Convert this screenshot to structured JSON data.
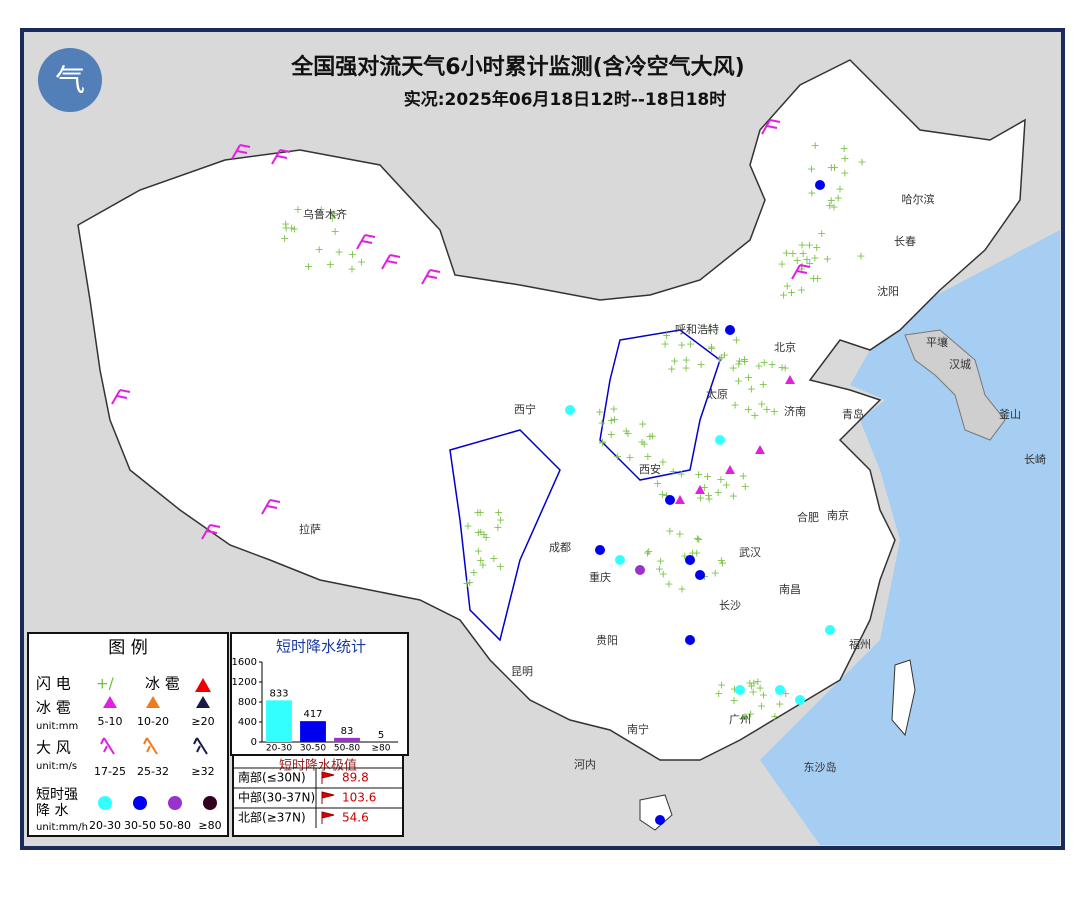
{
  "header": {
    "title": "全国强对流天气6小时累计监测(含冷空气大风)",
    "subtitle": "实况:2025年06月18日12时--18日18时"
  },
  "cities": [
    "乌鲁木齐",
    "哈尔滨",
    "长春",
    "沈阳",
    "平壤",
    "汉城",
    "釜山",
    "长崎",
    "呼和浩特",
    "北京",
    "太原",
    "济南",
    "青岛",
    "西宁",
    "西安",
    "合肥",
    "南京",
    "成都",
    "武汉",
    "重庆",
    "长沙",
    "南昌",
    "贵阳",
    "昆明",
    "福州",
    "南宁",
    "广州",
    "拉萨",
    "河内",
    "东沙岛"
  ],
  "legend": {
    "title": "图 例",
    "lightning": "闪 电",
    "hail": "冰 雹",
    "hail_size": "冰 雹",
    "hail_unit": "unit:mm",
    "hail_sizes": [
      "5-10",
      "10-20",
      "≥20"
    ],
    "wind": "大 风",
    "wind_unit": "unit:m/s",
    "wind_ranges": [
      "17-25",
      "25-32",
      "≥32"
    ],
    "rain_label": [
      "短时强",
      "降 水"
    ],
    "rain_unit": "unit:mm/h",
    "rain_ranges": [
      "20-30",
      "30-50",
      "50-80",
      "≥80"
    ]
  },
  "chart_data": {
    "type": "bar",
    "title": "短时降水统计",
    "categories": [
      "20-30",
      "30-50",
      "50-80",
      "≥80"
    ],
    "values": [
      833,
      417,
      83,
      5
    ],
    "colors": [
      "#33ffff",
      "#0000ee",
      "#9933cc",
      "#330022"
    ],
    "ylim": [
      0,
      1600
    ],
    "yticks": [
      0,
      400,
      800,
      1200,
      1600
    ]
  },
  "extremes": {
    "title": "短时降水极值",
    "rows": [
      {
        "region": "南部(≤30N)",
        "value": 89.8
      },
      {
        "region": "中部(30-37N)",
        "value": 103.6
      },
      {
        "region": "北部(≥37N)",
        "value": 54.6
      }
    ]
  }
}
